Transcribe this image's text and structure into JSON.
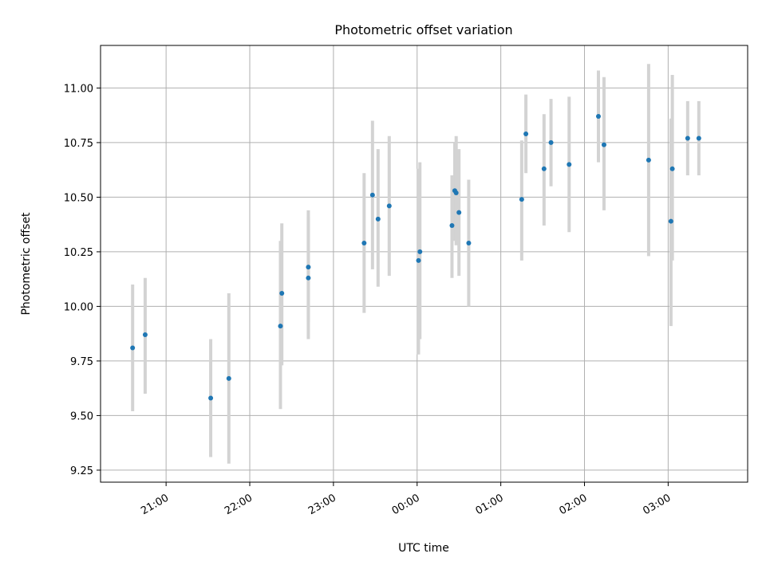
{
  "chart_data": {
    "type": "scatter",
    "title": "Photometric offset variation",
    "xlabel": "UTC time",
    "ylabel": "Photometric offset",
    "x_unit": "UTC time",
    "xlim": [
      "20:13",
      "27:57"
    ],
    "ylim": [
      9.195,
      11.195
    ],
    "x_ticks": [
      {
        "t": "21:00",
        "label": "21:00"
      },
      {
        "t": "22:00",
        "label": "22:00"
      },
      {
        "t": "23:00",
        "label": "23:00"
      },
      {
        "t": "24:00",
        "label": "00:00"
      },
      {
        "t": "25:00",
        "label": "01:00"
      },
      {
        "t": "26:00",
        "label": "02:00"
      },
      {
        "t": "27:00",
        "label": "03:00"
      }
    ],
    "y_ticks": [
      "9.25",
      "9.50",
      "9.75",
      "10.00",
      "10.25",
      "10.50",
      "10.75",
      "11.00"
    ],
    "grid": true,
    "colors": {
      "point": "#1f77b4",
      "errorbar": "#d3d3d3",
      "grid": "#b0b0b0"
    },
    "points": [
      {
        "t": "20:36",
        "y": 9.81,
        "lo": 9.52,
        "hi": 10.1
      },
      {
        "t": "20:45",
        "y": 9.87,
        "lo": 9.6,
        "hi": 10.13
      },
      {
        "t": "21:32",
        "y": 9.58,
        "lo": 9.31,
        "hi": 9.85
      },
      {
        "t": "21:45",
        "y": 9.67,
        "lo": 9.28,
        "hi": 10.06
      },
      {
        "t": "22:22",
        "y": 9.91,
        "lo": 9.53,
        "hi": 10.3
      },
      {
        "t": "22:23",
        "y": 10.06,
        "lo": 9.73,
        "hi": 10.38
      },
      {
        "t": "22:42",
        "y": 10.18,
        "lo": 9.93,
        "hi": 10.44
      },
      {
        "t": "22:42",
        "y": 10.13,
        "lo": 9.85,
        "hi": 10.41
      },
      {
        "t": "23:22",
        "y": 10.29,
        "lo": 9.97,
        "hi": 10.61
      },
      {
        "t": "23:28",
        "y": 10.51,
        "lo": 10.17,
        "hi": 10.85
      },
      {
        "t": "23:32",
        "y": 10.4,
        "lo": 10.09,
        "hi": 10.72
      },
      {
        "t": "23:40",
        "y": 10.46,
        "lo": 10.14,
        "hi": 10.78
      },
      {
        "t": "24:02",
        "y": 10.25,
        "lo": 9.85,
        "hi": 10.66
      },
      {
        "t": "24:01",
        "y": 10.21,
        "lo": 9.78,
        "hi": 10.63
      },
      {
        "t": "24:25",
        "y": 10.37,
        "lo": 10.13,
        "hi": 10.6
      },
      {
        "t": "24:27",
        "y": 10.53,
        "lo": 10.3,
        "hi": 10.75
      },
      {
        "t": "24:28",
        "y": 10.52,
        "lo": 10.28,
        "hi": 10.78
      },
      {
        "t": "24:30",
        "y": 10.43,
        "lo": 10.14,
        "hi": 10.72
      },
      {
        "t": "24:37",
        "y": 10.29,
        "lo": 10.0,
        "hi": 10.58
      },
      {
        "t": "25:15",
        "y": 10.49,
        "lo": 10.21,
        "hi": 10.76
      },
      {
        "t": "25:18",
        "y": 10.79,
        "lo": 10.61,
        "hi": 10.97
      },
      {
        "t": "25:31",
        "y": 10.63,
        "lo": 10.37,
        "hi": 10.88
      },
      {
        "t": "25:36",
        "y": 10.75,
        "lo": 10.55,
        "hi": 10.95
      },
      {
        "t": "25:49",
        "y": 10.65,
        "lo": 10.34,
        "hi": 10.96
      },
      {
        "t": "26:10",
        "y": 10.87,
        "lo": 10.66,
        "hi": 11.08
      },
      {
        "t": "26:14",
        "y": 10.74,
        "lo": 10.44,
        "hi": 11.05
      },
      {
        "t": "26:46",
        "y": 10.67,
        "lo": 10.23,
        "hi": 11.11
      },
      {
        "t": "27:02",
        "y": 10.39,
        "lo": 9.91,
        "hi": 10.86
      },
      {
        "t": "27:03",
        "y": 10.63,
        "lo": 10.21,
        "hi": 11.06
      },
      {
        "t": "27:14",
        "y": 10.77,
        "lo": 10.6,
        "hi": 10.94
      },
      {
        "t": "27:22",
        "y": 10.77,
        "lo": 10.6,
        "hi": 10.94
      }
    ]
  }
}
